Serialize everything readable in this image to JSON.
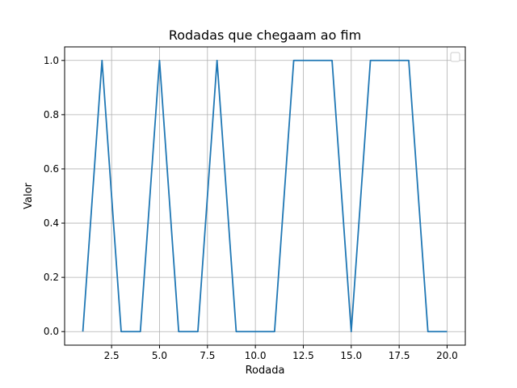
{
  "chart_data": {
    "type": "line",
    "title": "Rodadas que chegaam ao fim",
    "xlabel": "Rodada",
    "ylabel": "Valor",
    "xlim": [
      0.05,
      20.95
    ],
    "ylim": [
      -0.05,
      1.05
    ],
    "xticks": [
      2.5,
      5.0,
      7.5,
      10.0,
      12.5,
      15.0,
      17.5,
      20.0
    ],
    "xtick_labels": [
      "2.5",
      "5.0",
      "7.5",
      "10.0",
      "12.5",
      "15.0",
      "17.5",
      "20.0"
    ],
    "yticks": [
      0.0,
      0.2,
      0.4,
      0.6,
      0.8,
      1.0
    ],
    "ytick_labels": [
      "0.0",
      "0.2",
      "0.4",
      "0.6",
      "0.8",
      "1.0"
    ],
    "grid": true,
    "legend": "upper right (empty)",
    "series": [
      {
        "x": [
          1,
          2,
          3,
          4,
          5,
          6,
          7,
          8,
          9,
          10,
          11,
          12,
          13,
          14,
          15,
          16,
          17,
          18,
          19,
          20
        ],
        "values": [
          0,
          1,
          0,
          0,
          1,
          0,
          0,
          1,
          0,
          0,
          0,
          1,
          1,
          1,
          0,
          1,
          1,
          1,
          0,
          0
        ],
        "color": "#1f77b4"
      }
    ]
  }
}
